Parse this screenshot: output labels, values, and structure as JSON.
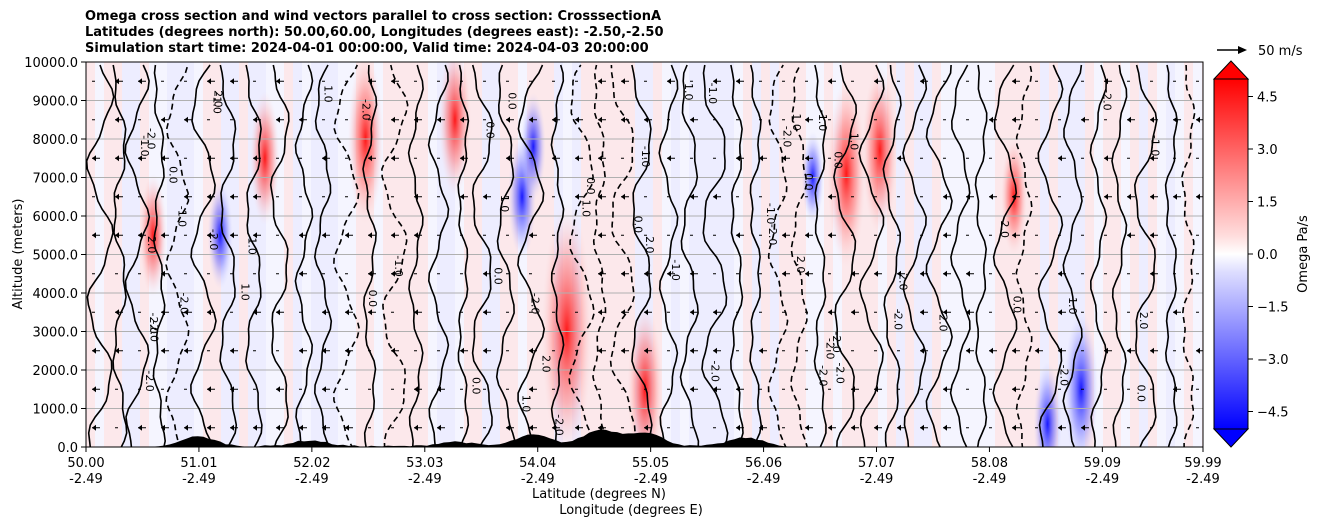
{
  "chart_data": {
    "type": "contour",
    "title_lines": [
      "Omega cross section and wind vectors parallel to cross section: CrosssectionA",
      "Latitudes (degrees north): 50.00,60.00, Longitudes (degrees east): -2.50,-2.50",
      "Simulation start time: 2024-04-01 00:00:00, Valid time: 2024-04-03 20:00:00"
    ],
    "ylabel": "Altitude (meters)",
    "xlabel_lines": [
      "Latitude (degrees N)",
      "Longitude (degrees E)"
    ],
    "y_ticks": [
      "0.0",
      "1000.0",
      "2000.0",
      "3000.0",
      "4000.0",
      "5000.0",
      "6000.0",
      "7000.0",
      "8000.0",
      "9000.0",
      "10000.0"
    ],
    "y_tick_values": [
      0,
      1000,
      2000,
      3000,
      4000,
      5000,
      6000,
      7000,
      8000,
      9000,
      10000
    ],
    "ylim": [
      0,
      10000
    ],
    "x_tick_values": [
      50.0,
      51.01,
      52.02,
      53.03,
      54.04,
      55.05,
      56.06,
      57.07,
      58.08,
      59.09,
      59.99
    ],
    "x_ticks_lat": [
      "50.00",
      "51.01",
      "52.02",
      "53.03",
      "54.04",
      "55.05",
      "56.06",
      "57.07",
      "58.08",
      "59.09",
      "59.99"
    ],
    "x_ticks_lon": [
      "-2.49",
      "-2.49",
      "-2.49",
      "-2.49",
      "-2.49",
      "-2.49",
      "-2.49",
      "-2.49",
      "-2.49",
      "-2.49",
      "-2.49"
    ],
    "xlim": [
      50.0,
      59.99
    ],
    "grid": "horizontal",
    "colorbar": {
      "label": "Omega Pa/s",
      "ticks": [
        "4.5",
        "3.0",
        "1.5",
        "0.0",
        "−1.5",
        "−3.0",
        "−4.5"
      ],
      "tick_values": [
        4.5,
        3.0,
        1.5,
        0.0,
        -1.5,
        -3.0,
        -4.5
      ],
      "range": [
        -5.0,
        5.0
      ],
      "colormap": "bwr"
    },
    "vector_key": {
      "label": "50 m/s"
    },
    "contour_labels": [
      "0.0",
      "1.0",
      "-1.0",
      "2.0",
      "-2.0"
    ],
    "positive_regions": [
      {
        "lat": 50.6,
        "alt": 5500,
        "omega": 1.2
      },
      {
        "lat": 51.6,
        "alt": 7500,
        "omega": 1.5
      },
      {
        "lat": 52.5,
        "alt": 8000,
        "omega": 2.5
      },
      {
        "lat": 53.3,
        "alt": 8500,
        "omega": 2.0
      },
      {
        "lat": 54.3,
        "alt": 3000,
        "omega": 5.0
      },
      {
        "lat": 55.0,
        "alt": 1500,
        "omega": 2.5
      },
      {
        "lat": 56.8,
        "alt": 7100,
        "omega": 3.0
      },
      {
        "lat": 57.1,
        "alt": 7700,
        "omega": 2.5
      },
      {
        "lat": 58.3,
        "alt": 6500,
        "omega": 1.0
      }
    ],
    "negative_regions": [
      {
        "lat": 51.2,
        "alt": 5500,
        "omega": -1.5
      },
      {
        "lat": 53.9,
        "alt": 6500,
        "omega": -2.0
      },
      {
        "lat": 54.0,
        "alt": 7800,
        "omega": -1.5
      },
      {
        "lat": 56.5,
        "alt": 7000,
        "omega": -1.0
      },
      {
        "lat": 58.9,
        "alt": 1500,
        "omega": -3.0
      },
      {
        "lat": 58.6,
        "alt": 600,
        "omega": -2.0
      }
    ]
  },
  "colors": {
    "positive": "#ff0000",
    "negative": "#0000ff",
    "background": "#ffffff",
    "grid": "#b0b0b0",
    "terrain": "#000000"
  }
}
